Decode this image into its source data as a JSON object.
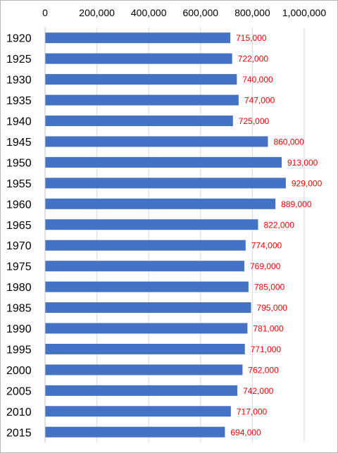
{
  "chart_data": {
    "type": "bar",
    "orientation": "horizontal",
    "categories": [
      "1920",
      "1925",
      "1930",
      "1935",
      "1940",
      "1945",
      "1950",
      "1955",
      "1960",
      "1965",
      "1970",
      "1975",
      "1980",
      "1985",
      "1990",
      "1995",
      "2000",
      "2005",
      "2010",
      "2015"
    ],
    "values": [
      715000,
      722000,
      740000,
      747000,
      725000,
      860000,
      913000,
      929000,
      889000,
      822000,
      774000,
      769000,
      785000,
      795000,
      781000,
      771000,
      762000,
      742000,
      717000,
      694000
    ],
    "data_labels": [
      "715,000",
      "722,000",
      "740,000",
      "747,000",
      "725,000",
      "860,000",
      "913,000",
      "929,000",
      "889,000",
      "822,000",
      "774,000",
      "769,000",
      "785,000",
      "795,000",
      "781,000",
      "771,000",
      "762,000",
      "742,000",
      "717,000",
      "694,000"
    ],
    "x_ticks": [
      0,
      200000,
      400000,
      600000,
      800000,
      1000000
    ],
    "x_tick_labels": [
      "0",
      "200,000",
      "400,000",
      "600,000",
      "800,000",
      "1,000,000"
    ],
    "xlim": [
      0,
      1000000
    ],
    "x_axis_position": "top",
    "grid": true,
    "title": "",
    "xlabel": "",
    "ylabel": "",
    "colors": {
      "bar": "#4472c4",
      "data_label": "#ff0000",
      "grid": "#d9d9d9",
      "axis": "#bfbfbf"
    }
  }
}
